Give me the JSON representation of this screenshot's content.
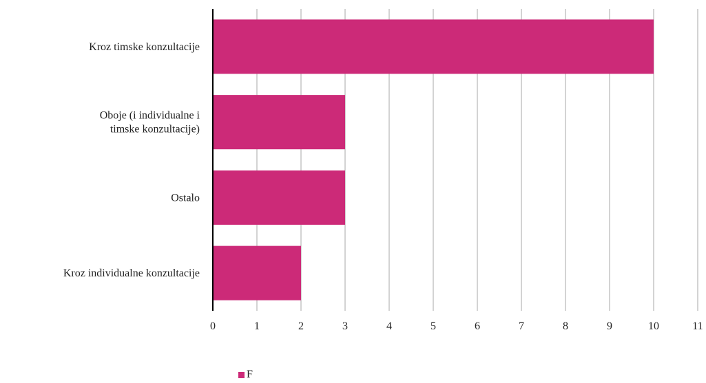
{
  "chart_data": {
    "type": "bar",
    "orientation": "horizontal",
    "categories": [
      [
        "Kroz timske konzultacije"
      ],
      [
        "Oboje (i individualne i",
        "timske konzultacije)"
      ],
      [
        "Ostalo"
      ],
      [
        "Kroz individualne konzultacije"
      ]
    ],
    "series": [
      {
        "name": "F",
        "values": [
          10,
          3,
          3,
          2
        ],
        "color": "#cc2a78"
      }
    ],
    "xlim": [
      0,
      11
    ],
    "xticks": [
      0,
      1,
      2,
      3,
      4,
      5,
      6,
      7,
      8,
      9,
      10,
      11
    ],
    "grid": "vertical",
    "legend_position": "bottom"
  }
}
